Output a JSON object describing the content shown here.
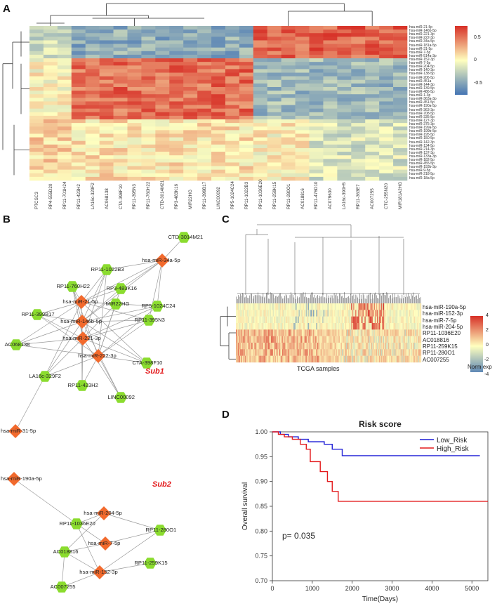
{
  "panels": {
    "a": {
      "label": "A"
    },
    "b": {
      "label": "B"
    },
    "c": {
      "label": "C"
    },
    "d": {
      "label": "D"
    }
  },
  "heatmapA": {
    "columns": [
      "PTCSC3",
      "RP4-555D20",
      "RP11-701H24",
      "RP11-423H2",
      "LA16c-329F2",
      "AC068138",
      "CTA-398F10",
      "RP11-395N3",
      "RP11-760H22",
      "CTD-3014M21",
      "RP3-483K16",
      "MIR22HG",
      "RP11-399B17",
      "LINC00092",
      "RP5-1024C24",
      "RP11-1022B3",
      "RP11-1036E20",
      "RP11-259K15",
      "RP11-280O1",
      "AC018816",
      "RP11-476D10",
      "AC079630",
      "LA16c-390H5",
      "RP11-363E7",
      "AC007255",
      "CTC-255N20",
      "MIR181A2HG"
    ],
    "rows": [
      "hsa-miR-21-5p",
      "hsa-miR-146b-5p",
      "hsa-miR-221-3p",
      "hsa-miR-222-3p",
      "hsa-miR-34a-5p",
      "hsa-miR-181a-5p",
      "hsa-miR-31-5p",
      "hsa-miR-7-5p",
      "hsa-miR-514a-3p",
      "hsa-miR-152-3p",
      "hsa-miR-7-5p",
      "hsa-miR-204-5p",
      "hsa-miR-140-3p",
      "hsa-miR-138-5p",
      "hsa-miR-206-5p",
      "hsa-miR-451a",
      "hsa-miR-144-3p",
      "hsa-miR-139-5p",
      "hsa-miR-486-5p",
      "hsa-miR-1-3p",
      "hsa-miR-363a-3p",
      "hsa-miR-451-5p",
      "hsa-miR-190a-5p",
      "hsa-miR-363-3p",
      "hsa-miR-708-5p",
      "hsa-miR-335-5p",
      "hsa-miR-127-3p",
      "hsa-miR-375-3p",
      "hsa-miR-199a-5p",
      "hsa-miR-199b-5p",
      "hsa-miR-195-5p",
      "hsa-miR-150-5p",
      "hsa-miR-142-3p",
      "hsa-miR-134-5p",
      "hsa-miR-214-3p",
      "hsa-miR-137-3p",
      "hsa-miR-133a-3p",
      "hsa-miR-182-5p",
      "hsa-miR-455-5p",
      "hsa-miR-193b-3p",
      "hsa-miR-9-5p",
      "hsa-miR-218-5p",
      "hsa-miR-18a-5p"
    ],
    "legend_ticks": [
      "0.5",
      "0",
      "-0.5"
    ]
  },
  "network": {
    "sub1_label": "Sub1",
    "sub2_label": "Sub2",
    "lnc_color": "#8bdc2f",
    "mir_color": "#f26a2d",
    "nodes": {
      "ctd": "CTD-3014M21",
      "m34a": "hsa-miR-34a-5p",
      "rp1022": "RP11-1022B3",
      "rp760": "RP11-760H22",
      "rp3": "RP3-483K16",
      "m21": "hsa-miR-21-5p",
      "mir22": "MIR22HG",
      "rp5": "RP5-1024C24",
      "rp399": "RP11-399B17",
      "m146": "hsa-miR-146b-5p",
      "rp395": "RP11-395N3",
      "m221": "hsa-miR-221-3p",
      "ac068": "AC068138",
      "m222": "hsa-miR-222-3p",
      "cta": "CTA-398F10",
      "la16": "LA16c-329F2",
      "rp423": "RP11-423H2",
      "linc": "LINC00092",
      "m31": "hsa-miR-31-5p",
      "m190": "hsa-miR-190a-5p",
      "m204": "hsa-miR-204-5p",
      "rp1036": "RP11-1036E20",
      "rp280": "RP11-280O1",
      "m7": "hsa-miR-7-5p",
      "ac018": "AC018816",
      "rp259": "RP11-259K15",
      "m152": "hsa-miR-152-3p",
      "ac007": "AC007255"
    }
  },
  "heatmapC": {
    "rows": [
      "hsa-miR-190a-5p",
      "hsa-miR-152-3p",
      "hsa-miR-7-5p",
      "hsa-miR-204-5p",
      "RP11-1036E20",
      "AC018816",
      "RP11-259K15",
      "RP11-280O1",
      "AC007255"
    ],
    "xlabel": "TCGA samples",
    "legend_ticks": [
      "4",
      "2",
      "0",
      "-2",
      "-4"
    ],
    "legend_title": "Norm exp"
  },
  "chart_data": {
    "type": "line",
    "title": "Risk score",
    "xlabel": "Time(Days)",
    "ylabel": "Overall survival",
    "xlim": [
      0,
      5400
    ],
    "ylim": [
      0.7,
      1.0
    ],
    "xticks": [
      "0",
      "1000",
      "2000",
      "3000",
      "4000",
      "5000"
    ],
    "yticks": [
      "0.70",
      "0.75",
      "0.80",
      "0.85",
      "0.90",
      "0.95",
      "1.00"
    ],
    "annotation": "p= 0.035",
    "series": [
      {
        "name": "Low_Risk",
        "color": "#1f1fd6",
        "x": [
          0,
          200,
          400,
          650,
          900,
          1300,
          1500,
          1750,
          5200
        ],
        "y": [
          1.0,
          0.995,
          0.99,
          0.985,
          0.98,
          0.975,
          0.965,
          0.952,
          0.952
        ]
      },
      {
        "name": "High_Risk",
        "color": "#e31a1c",
        "x": [
          0,
          150,
          300,
          500,
          700,
          850,
          950,
          1200,
          1380,
          1500,
          1650,
          1800,
          5400
        ],
        "y": [
          1.0,
          0.995,
          0.99,
          0.985,
          0.975,
          0.965,
          0.94,
          0.92,
          0.9,
          0.88,
          0.86,
          0.86,
          0.86
        ]
      }
    ]
  }
}
